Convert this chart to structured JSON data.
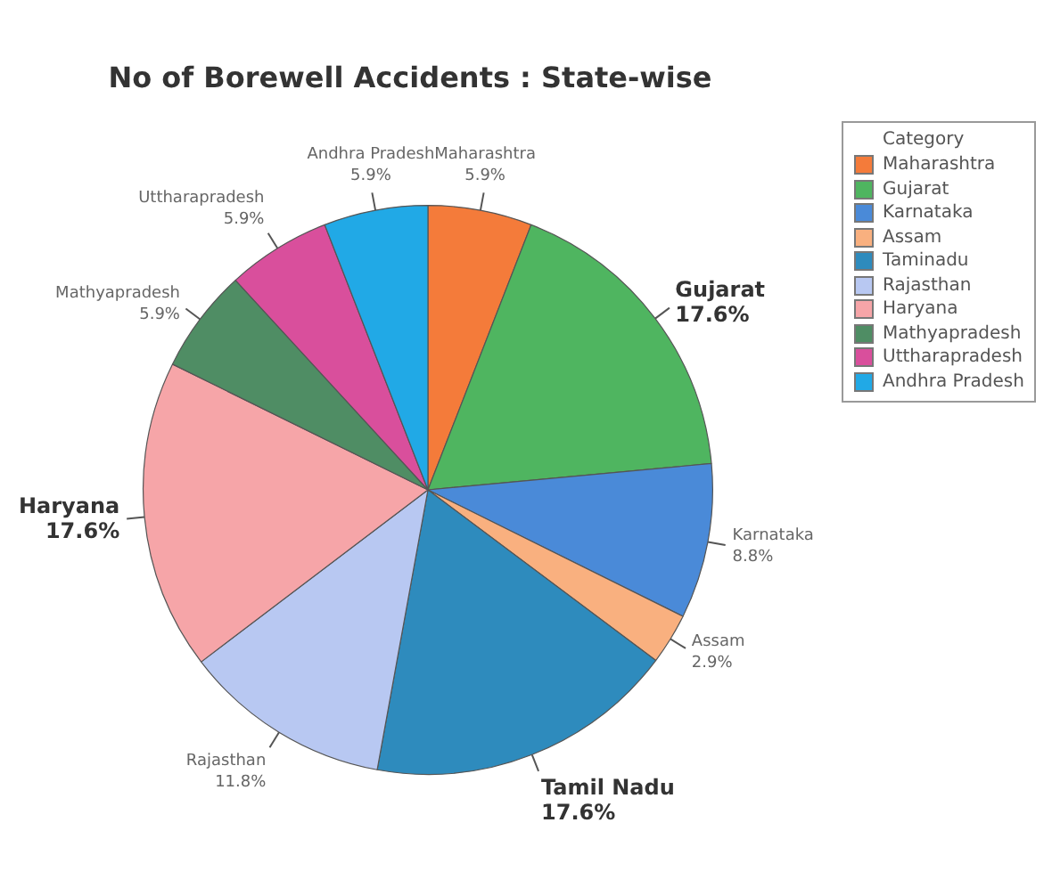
{
  "chart_data": {
    "type": "pie",
    "title": "No of Borewell Accidents : State-wise",
    "legend_title": "Category",
    "legend": "top right",
    "categories": [
      "Maharashtra",
      "Gujarat",
      "Karnataka",
      "Assam",
      "Taminadu",
      "Rajasthan",
      "Haryana",
      "Mathyapradesh",
      "Uttharapradesh",
      "Andhra Pradesh"
    ],
    "values": [
      5.9,
      17.6,
      8.8,
      2.9,
      17.6,
      11.8,
      17.6,
      5.9,
      5.9,
      5.9
    ],
    "colors": [
      "#f47b3a",
      "#4fb560",
      "#4a8ad8",
      "#f9b07f",
      "#2e8bbd",
      "#b8c8f2",
      "#f6a5a8",
      "#4f8d64",
      "#d94f9c",
      "#21a9e6"
    ],
    "value_labels": [
      "Maharashtra\n5.9%",
      "Gujarat\n17.6%",
      "Karnataka\n8.8%",
      "Assam\n2.9%",
      "Tamil Nadu\n17.6%",
      "Rajasthan\n11.8%",
      "Haryana\n17.6%",
      "Mathyapradesh\n5.9%",
      "Uttharapradesh\n5.9%",
      "Andhra Pradesh\n5.9%"
    ]
  }
}
